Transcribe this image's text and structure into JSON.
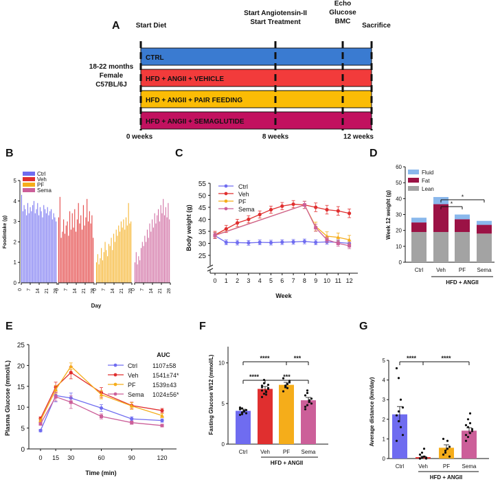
{
  "colors": {
    "ctrl": "#6f6cf0",
    "veh": "#e02f2f",
    "pf": "#f5ad1a",
    "sema": "#cc5f99",
    "blueBar": "#3a7bd1",
    "redBar": "#f23b3b",
    "yellowBar": "#fbbc05",
    "magentaBar": "#c2115f",
    "lean": "#a3a3a3",
    "fat": "#9b1245",
    "fluid": "#8ab8ec"
  },
  "panelA": {
    "letter": "A",
    "events": [
      {
        "label": [
          "Start Diet"
        ]
      },
      {
        "label": [
          "Start Angiotensin-II",
          "Start Treatment"
        ]
      },
      {
        "label": [
          "Echo",
          "Glucose",
          "BMC"
        ]
      },
      {
        "label": [
          "Sacrifice"
        ]
      }
    ],
    "cohort": [
      "18-22 months",
      "Female",
      "C57BL/6J"
    ],
    "groups": [
      "CTRL",
      "HFD + ANGII + VEHICLE",
      "HFD + ANGII + PAIR FEEDING",
      "HFD + ANGII + SEMAGLUTIDE"
    ],
    "weeks": [
      "0 weeks",
      "8 weeks",
      "12 weeks"
    ]
  },
  "chart_data": [
    {
      "panel": "B",
      "type": "bar",
      "title": "",
      "xlabel": "Day",
      "ylabel": "Foodintake (g)",
      "ylim": [
        0,
        5
      ],
      "yticks": [
        "0",
        "1",
        "2",
        "3",
        "4",
        "5"
      ],
      "xticks": [
        "0",
        "7",
        "14",
        "21",
        "28"
      ],
      "legend": [
        "Ctrl",
        "Veh",
        "PF",
        "Sema"
      ],
      "series": [
        {
          "name": "Ctrl",
          "values": [
            4.3,
            3.5,
            3.8,
            3.6,
            3.3,
            3.9,
            3.4,
            3.7,
            3.5,
            3.8,
            4.0,
            3.4,
            3.6,
            3.9,
            3.3,
            3.7,
            3.5,
            3.2,
            3.8,
            3.6,
            3.4,
            3.7,
            3.3,
            3.5,
            3.6,
            3.1,
            3.4,
            3.2,
            3.0
          ]
        },
        {
          "name": "Veh",
          "values": [
            3.2,
            4.2,
            2.2,
            2.5,
            3.1,
            2.4,
            2.8,
            3.0,
            2.3,
            3.5,
            2.6,
            3.4,
            2.7,
            3.6,
            2.5,
            3.1,
            3.9,
            2.9,
            3.3,
            2.6,
            3.8,
            2.8,
            3.2,
            4.1,
            3.0,
            3.5,
            2.9,
            3.3,
            2.2
          ]
        },
        {
          "name": "PF",
          "values": [
            1.0,
            1.4,
            0.9,
            1.2,
            1.7,
            1.1,
            1.5,
            2.0,
            1.6,
            1.3,
            1.9,
            1.8,
            2.2,
            1.6,
            2.4,
            2.0,
            2.6,
            2.3,
            2.8,
            2.5,
            3.0,
            2.7,
            3.1,
            2.6,
            3.2,
            2.8,
            3.9,
            2.9,
            3.0
          ]
        },
        {
          "name": "Sema",
          "values": [
            1.0,
            1.5,
            0.9,
            1.3,
            1.1,
            1.7,
            2.0,
            1.8,
            2.3,
            2.0,
            2.6,
            2.2,
            2.9,
            2.5,
            3.1,
            2.7,
            3.4,
            2.9,
            3.3,
            3.6,
            3.0,
            3.8,
            3.4,
            4.1,
            3.3,
            3.7,
            3.2,
            3.9,
            3.1
          ]
        }
      ]
    },
    {
      "panel": "C",
      "type": "line",
      "xlabel": "Week",
      "ylabel": "Body weight (g)",
      "x": [
        0,
        1,
        2,
        3,
        4,
        5,
        6,
        7,
        8,
        9,
        10,
        11,
        12
      ],
      "ylim": [
        25,
        55
      ],
      "yticks": [
        "25",
        "30",
        "35",
        "40",
        "45",
        "50",
        "55"
      ],
      "series": [
        {
          "name": "Ctrl",
          "values": [
            33.2,
            30.4,
            30.3,
            30.2,
            30.4,
            30.3,
            30.5,
            30.6,
            30.8,
            30.4,
            30.6,
            30.4,
            30.0
          ],
          "err": [
            1.2,
            1,
            1,
            1,
            1,
            1,
            1,
            1,
            1,
            1,
            1,
            1,
            1
          ]
        },
        {
          "name": "Veh",
          "values": [
            33.5,
            36.0,
            38.5,
            40.0,
            42.0,
            44.0,
            45.5,
            46.3,
            46.0,
            45.0,
            44.0,
            43.5,
            42.5
          ],
          "err": [
            1.5,
            1.5,
            1.5,
            1.5,
            1.5,
            1.5,
            1.5,
            1.5,
            1.5,
            1.8,
            1.8,
            1.8,
            1.8
          ]
        },
        {
          "name": "PF",
          "values": [
            33.4,
            null,
            null,
            null,
            null,
            null,
            null,
            null,
            46.0,
            37.0,
            33.0,
            32.5,
            31.5
          ],
          "err": [
            1.2,
            0,
            0,
            0,
            0,
            0,
            0,
            0,
            1.5,
            1.8,
            1.8,
            1.8,
            1.8
          ]
        },
        {
          "name": "Sema",
          "values": [
            33.3,
            null,
            null,
            null,
            null,
            null,
            null,
            null,
            46.0,
            36.5,
            31.5,
            30.0,
            29.0
          ],
          "err": [
            1.2,
            0,
            0,
            0,
            0,
            0,
            0,
            0,
            1.5,
            1.5,
            1.2,
            1.2,
            1.2
          ]
        }
      ]
    },
    {
      "panel": "D",
      "type": "bar",
      "stacked": true,
      "ylabel": "Week 12 weight (g)",
      "ylim": [
        0,
        60
      ],
      "yticks": [
        "0",
        "10",
        "20",
        "30",
        "40",
        "50",
        "60"
      ],
      "categories": [
        "Ctrl",
        "Veh",
        "PF",
        "Sema"
      ],
      "group_label": "HFD + ANGII",
      "series": [
        {
          "name": "Lean",
          "values": [
            19,
            19,
            19,
            18
          ]
        },
        {
          "name": "Fat",
          "values": [
            6,
            17.5,
            8,
            5.5
          ]
        },
        {
          "name": "Fluid",
          "values": [
            3,
            4.5,
            3,
            2.5
          ]
        }
      ],
      "significance": [
        {
          "from": "Veh",
          "to": "PF",
          "label": "*"
        },
        {
          "from": "Veh",
          "to": "Sema",
          "label": "*"
        }
      ]
    },
    {
      "panel": "E",
      "type": "line",
      "xlabel": "Time (min)",
      "ylabel": "Plasma Glucose (mmol/L)",
      "x": [
        0,
        15,
        30,
        60,
        90,
        120
      ],
      "ylim": [
        0,
        25
      ],
      "yticks": [
        "0",
        "5",
        "10",
        "15",
        "20",
        "25"
      ],
      "auc_title": "AUC",
      "series": [
        {
          "name": "Ctrl",
          "auc": "1107±58",
          "values": [
            4.4,
            12.8,
            12.2,
            9.8,
            7.2,
            6.8
          ],
          "err": [
            0.3,
            1.5,
            1.2,
            0.8,
            0.5,
            0.4
          ]
        },
        {
          "name": "Veh",
          "auc": "1541±74*",
          "values": [
            7.3,
            14.8,
            18.3,
            13.5,
            10.4,
            9.2
          ],
          "err": [
            0.4,
            1.2,
            1.5,
            1.2,
            0.8,
            0.5
          ]
        },
        {
          "name": "PF",
          "auc": "1539±43",
          "values": [
            6.8,
            14.2,
            19.8,
            13.0,
            10.3,
            8.0
          ],
          "err": [
            0.4,
            1.0,
            0.8,
            1.0,
            0.8,
            0.5
          ]
        },
        {
          "name": "Sema",
          "auc": "1024±56*",
          "values": [
            6.0,
            12.5,
            11.2,
            7.8,
            6.3,
            5.6
          ],
          "err": [
            0.3,
            1.0,
            1.5,
            0.6,
            0.4,
            0.3
          ]
        }
      ]
    },
    {
      "panel": "F",
      "type": "bar",
      "ylabel": "Fasting Glucose W12 (mmol/L)",
      "ylim": [
        0,
        10
      ],
      "yticks": [
        "0",
        "5",
        "10"
      ],
      "categories": [
        "Ctrl",
        "Veh",
        "PF",
        "Sema"
      ],
      "group_label": "HFD + ANGII",
      "values": [
        4.1,
        6.8,
        7.3,
        5.4
      ],
      "err": [
        0.2,
        0.3,
        0.3,
        0.35
      ],
      "significance": [
        {
          "from": "Ctrl",
          "to": "PF",
          "label": "****"
        },
        {
          "from": "PF",
          "to": "Sema",
          "label": "***"
        },
        {
          "from": "Ctrl",
          "to": "Veh",
          "label": "****"
        },
        {
          "from": "Veh",
          "to": "Sema",
          "label": "***"
        }
      ]
    },
    {
      "panel": "G",
      "type": "bar",
      "ylabel": "Average distance (km/day)",
      "ylim": [
        0,
        5
      ],
      "yticks": [
        "0",
        "1",
        "2",
        "3",
        "4",
        "5"
      ],
      "categories": [
        "Ctrl",
        "Veh",
        "PF",
        "Sema"
      ],
      "group_label": "HFD + ANGII",
      "values": [
        2.25,
        0.07,
        0.55,
        1.42
      ],
      "err": [
        0.4,
        0.05,
        0.15,
        0.15
      ],
      "significance": [
        {
          "from": "Ctrl",
          "to": "Veh",
          "label": "****"
        },
        {
          "from": "Veh",
          "to": "Sema",
          "label": "****"
        }
      ]
    }
  ],
  "panel_letters": {
    "B": "B",
    "C": "C",
    "D": "D",
    "E": "E",
    "F": "F",
    "G": "G"
  }
}
